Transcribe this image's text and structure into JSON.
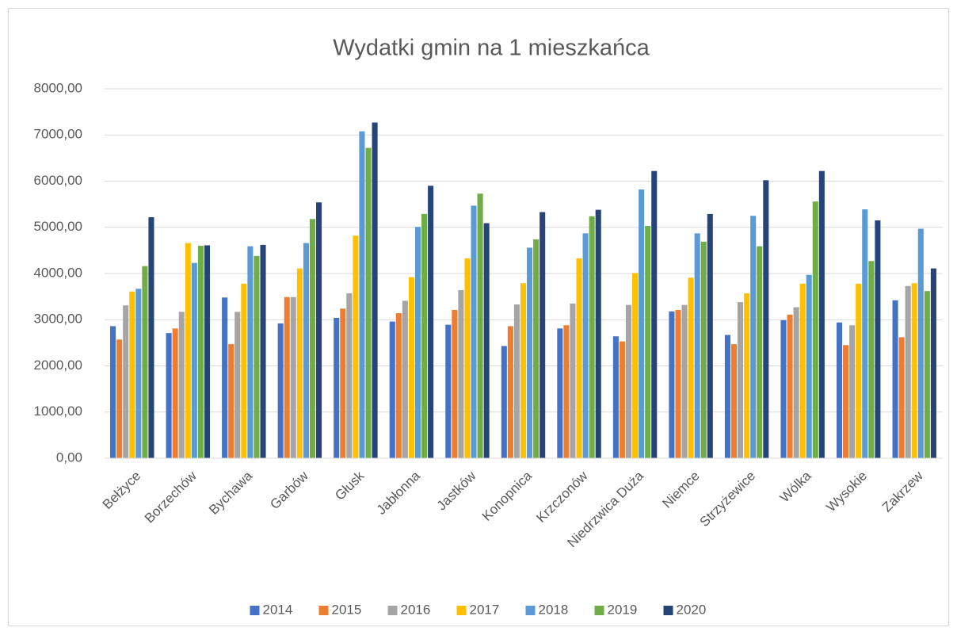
{
  "chart_data": {
    "type": "bar",
    "title": "Wydatki gmin na 1 mieszkańca",
    "categories": [
      "Bełżyce",
      "Borzechów",
      "Bychawa",
      "Garbów",
      "Głusk",
      "Jabłonna",
      "Jastków",
      "Konopnica",
      "Krzczonów",
      "Niedrzwica Duża",
      "Niemce",
      "Strzyżewice",
      "Wólka",
      "Wysokie",
      "Zakrzew"
    ],
    "series": [
      {
        "name": "2014",
        "color": "#4472c4",
        "values": [
          2860,
          2710,
          3480,
          2920,
          3040,
          2960,
          2890,
          2430,
          2810,
          2640,
          3180,
          2670,
          2990,
          2940,
          3420
        ]
      },
      {
        "name": "2015",
        "color": "#ed7d31",
        "values": [
          2570,
          2810,
          2470,
          3490,
          3240,
          3140,
          3210,
          2860,
          2880,
          2530,
          3210,
          2470,
          3110,
          2450,
          2620
        ]
      },
      {
        "name": "2016",
        "color": "#a5a5a5",
        "values": [
          3310,
          3170,
          3170,
          3490,
          3570,
          3410,
          3640,
          3330,
          3350,
          3320,
          3320,
          3380,
          3270,
          2880,
          3730
        ]
      },
      {
        "name": "2017",
        "color": "#ffc000",
        "values": [
          3610,
          4660,
          3780,
          4110,
          4820,
          3920,
          4330,
          3790,
          4330,
          4010,
          3910,
          3570,
          3780,
          3780,
          3790
        ]
      },
      {
        "name": "2018",
        "color": "#5b9bd5",
        "values": [
          3670,
          4230,
          4590,
          4660,
          7080,
          5010,
          5470,
          4560,
          4870,
          5820,
          4870,
          5250,
          3970,
          5390,
          4970
        ]
      },
      {
        "name": "2019",
        "color": "#70ad47",
        "values": [
          4160,
          4600,
          4380,
          5180,
          6720,
          5290,
          5730,
          4740,
          5240,
          5030,
          4690,
          4590,
          5560,
          4270,
          3620
        ]
      },
      {
        "name": "2020",
        "color": "#264478",
        "values": [
          5220,
          4610,
          4620,
          5540,
          7270,
          5900,
          5090,
          5330,
          5380,
          6220,
          5290,
          6020,
          6220,
          5150,
          4110
        ]
      }
    ],
    "ylim": [
      0,
      8000
    ],
    "yticks": [
      {
        "value": 0,
        "label": "0,00"
      },
      {
        "value": 1000,
        "label": "1000,00"
      },
      {
        "value": 2000,
        "label": "2000,00"
      },
      {
        "value": 3000,
        "label": "3000,00"
      },
      {
        "value": 4000,
        "label": "4000,00"
      },
      {
        "value": 5000,
        "label": "5000,00"
      },
      {
        "value": 6000,
        "label": "6000,00"
      },
      {
        "value": 7000,
        "label": "7000,00"
      },
      {
        "value": 8000,
        "label": "8000,00"
      }
    ],
    "grid": true,
    "legend": "bottom"
  }
}
